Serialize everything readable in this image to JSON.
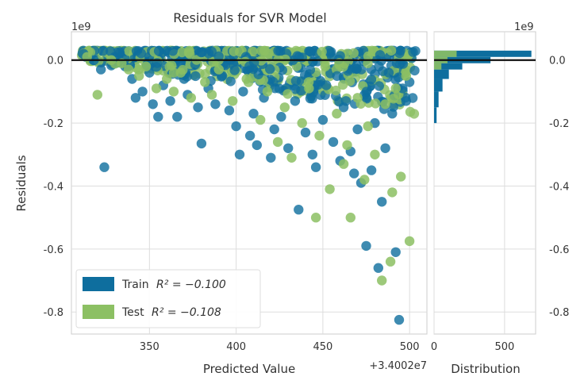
{
  "chart_data": {
    "type": "scatter",
    "title": "Residuals for SVR Model",
    "xlabel": "Predicted Value",
    "ylabel": "Residuals",
    "x_offset_label": "+3.4002e7",
    "y_multiplier_label": "1e9",
    "xlim": [
      305,
      510
    ],
    "ylim": [
      -0.87,
      0.09
    ],
    "x_ticks": [
      "350",
      "400",
      "450",
      "500"
    ],
    "y_ticks": [
      "0.0",
      "-0.2",
      "-0.4",
      "-0.6",
      "-0.8"
    ],
    "grid": true,
    "zero_line": 0.0,
    "legend": {
      "placement": "lower-left",
      "entries": [
        {
          "label_prefix": "Train",
          "r2_text": "R² = −0.100",
          "color": "#0e6e9e"
        },
        {
          "label_prefix": "Test",
          "r2_text": "R² = −0.108",
          "color": "#8cc063"
        }
      ]
    },
    "series": [
      {
        "name": "Train",
        "color": "#0e6e9e",
        "points": [
          {
            "x": 312,
            "y": 0.02
          },
          {
            "x": 318,
            "y": 0.0
          },
          {
            "x": 322,
            "y": -0.03
          },
          {
            "x": 324,
            "y": -0.34
          },
          {
            "x": 330,
            "y": 0.01
          },
          {
            "x": 336,
            "y": -0.02
          },
          {
            "x": 340,
            "y": -0.06
          },
          {
            "x": 342,
            "y": -0.12
          },
          {
            "x": 346,
            "y": -0.1
          },
          {
            "x": 350,
            "y": -0.04
          },
          {
            "x": 352,
            "y": -0.14
          },
          {
            "x": 355,
            "y": -0.18
          },
          {
            "x": 358,
            "y": -0.08
          },
          {
            "x": 362,
            "y": -0.13
          },
          {
            "x": 366,
            "y": -0.18
          },
          {
            "x": 370,
            "y": -0.06
          },
          {
            "x": 372,
            "y": -0.11
          },
          {
            "x": 378,
            "y": -0.15
          },
          {
            "x": 380,
            "y": -0.265
          },
          {
            "x": 384,
            "y": -0.09
          },
          {
            "x": 388,
            "y": -0.14
          },
          {
            "x": 392,
            "y": -0.05
          },
          {
            "x": 396,
            "y": -0.16
          },
          {
            "x": 400,
            "y": -0.21
          },
          {
            "x": 402,
            "y": -0.3
          },
          {
            "x": 404,
            "y": -0.1
          },
          {
            "x": 408,
            "y": -0.24
          },
          {
            "x": 410,
            "y": -0.17
          },
          {
            "x": 412,
            "y": -0.27
          },
          {
            "x": 416,
            "y": -0.12
          },
          {
            "x": 420,
            "y": -0.31
          },
          {
            "x": 422,
            "y": -0.22
          },
          {
            "x": 426,
            "y": -0.18
          },
          {
            "x": 430,
            "y": -0.28
          },
          {
            "x": 434,
            "y": -0.13
          },
          {
            "x": 436,
            "y": -0.475
          },
          {
            "x": 440,
            "y": -0.23
          },
          {
            "x": 444,
            "y": -0.3
          },
          {
            "x": 446,
            "y": -0.34
          },
          {
            "x": 450,
            "y": -0.19
          },
          {
            "x": 452,
            "y": -0.08
          },
          {
            "x": 456,
            "y": -0.26
          },
          {
            "x": 460,
            "y": -0.32
          },
          {
            "x": 462,
            "y": -0.15
          },
          {
            "x": 466,
            "y": -0.29
          },
          {
            "x": 468,
            "y": -0.36
          },
          {
            "x": 470,
            "y": -0.22
          },
          {
            "x": 472,
            "y": -0.39
          },
          {
            "x": 474,
            "y": -0.11
          },
          {
            "x": 475,
            "y": -0.59
          },
          {
            "x": 478,
            "y": -0.35
          },
          {
            "x": 480,
            "y": -0.2
          },
          {
            "x": 482,
            "y": -0.66
          },
          {
            "x": 484,
            "y": -0.45
          },
          {
            "x": 486,
            "y": -0.28
          },
          {
            "x": 488,
            "y": -0.04
          },
          {
            "x": 490,
            "y": -0.17
          },
          {
            "x": 492,
            "y": -0.61
          },
          {
            "x": 494,
            "y": -0.825
          },
          {
            "x": 496,
            "y": -0.09
          },
          {
            "x": 498,
            "y": -0.13
          },
          {
            "x": 500,
            "y": -0.07
          }
        ]
      },
      {
        "name": "Test",
        "color": "#8cc063",
        "points": [
          {
            "x": 314,
            "y": 0.01
          },
          {
            "x": 320,
            "y": -0.11
          },
          {
            "x": 328,
            "y": 0.0
          },
          {
            "x": 334,
            "y": -0.01
          },
          {
            "x": 338,
            "y": -0.03
          },
          {
            "x": 344,
            "y": -0.05
          },
          {
            "x": 348,
            "y": -0.02
          },
          {
            "x": 354,
            "y": -0.09
          },
          {
            "x": 360,
            "y": -0.06
          },
          {
            "x": 364,
            "y": -0.1
          },
          {
            "x": 368,
            "y": -0.04
          },
          {
            "x": 374,
            "y": -0.12
          },
          {
            "x": 382,
            "y": -0.07
          },
          {
            "x": 386,
            "y": -0.11
          },
          {
            "x": 390,
            "y": -0.03
          },
          {
            "x": 398,
            "y": -0.13
          },
          {
            "x": 406,
            "y": -0.06
          },
          {
            "x": 414,
            "y": -0.19
          },
          {
            "x": 418,
            "y": -0.1
          },
          {
            "x": 424,
            "y": -0.26
          },
          {
            "x": 428,
            "y": -0.15
          },
          {
            "x": 432,
            "y": -0.31
          },
          {
            "x": 438,
            "y": -0.2
          },
          {
            "x": 442,
            "y": -0.09
          },
          {
            "x": 446,
            "y": -0.5
          },
          {
            "x": 448,
            "y": -0.24
          },
          {
            "x": 454,
            "y": -0.41
          },
          {
            "x": 458,
            "y": -0.17
          },
          {
            "x": 462,
            "y": -0.33
          },
          {
            "x": 464,
            "y": -0.27
          },
          {
            "x": 466,
            "y": -0.5
          },
          {
            "x": 470,
            "y": -0.12
          },
          {
            "x": 474,
            "y": -0.38
          },
          {
            "x": 476,
            "y": -0.21
          },
          {
            "x": 480,
            "y": -0.3
          },
          {
            "x": 484,
            "y": -0.7
          },
          {
            "x": 486,
            "y": -0.14
          },
          {
            "x": 489,
            "y": -0.64
          },
          {
            "x": 490,
            "y": -0.42
          },
          {
            "x": 492,
            "y": -0.09
          },
          {
            "x": 495,
            "y": -0.37
          },
          {
            "x": 498,
            "y": -0.05
          },
          {
            "x": 500,
            "y": -0.575
          }
        ]
      }
    ],
    "distribution": {
      "xlabel": "Distribution",
      "x_ticks": [
        "0",
        "500"
      ],
      "xlim": [
        0,
        720
      ],
      "train_bins": [
        {
          "y_top": 0.03,
          "y_bottom": 0.01,
          "count": 690
        },
        {
          "y_top": 0.01,
          "y_bottom": -0.01,
          "count": 400
        },
        {
          "y_top": -0.01,
          "y_bottom": -0.03,
          "count": 200
        },
        {
          "y_top": -0.03,
          "y_bottom": -0.06,
          "count": 105
        },
        {
          "y_top": -0.06,
          "y_bottom": -0.1,
          "count": 60
        },
        {
          "y_top": -0.1,
          "y_bottom": -0.15,
          "count": 32
        },
        {
          "y_top": -0.15,
          "y_bottom": -0.2,
          "count": 18
        }
      ],
      "test_bins": [
        {
          "y_top": 0.03,
          "y_bottom": 0.01,
          "count": 160
        },
        {
          "y_top": 0.01,
          "y_bottom": -0.01,
          "count": 95
        },
        {
          "y_top": -0.01,
          "y_bottom": -0.03,
          "count": 52
        }
      ]
    }
  }
}
